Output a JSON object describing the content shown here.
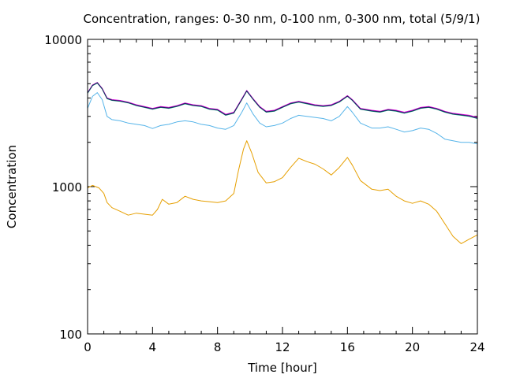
{
  "chart_data": {
    "type": "line",
    "title": "Concentration, ranges: 0-30 nm, 0-100 nm, 0-300 nm, total (5/9/1)",
    "xlabel": "Time [hour]",
    "ylabel": "Concentration",
    "xlim": [
      0,
      24
    ],
    "ylim": [
      100,
      10000
    ],
    "yscale": "log",
    "xticks": [
      0,
      4,
      8,
      12,
      16,
      20,
      24
    ],
    "xtick_labels": [
      "0",
      "4",
      "8",
      "12",
      "16",
      "20",
      "24"
    ],
    "yticks": [
      100,
      1000,
      10000
    ],
    "ytick_labels": [
      "100",
      "1000",
      "10000"
    ],
    "grid": false,
    "legend": "none",
    "series": [
      {
        "color": "#e69f00",
        "points": [
          [
            0,
            980
          ],
          [
            0.3,
            1020
          ],
          [
            0.7,
            980
          ],
          [
            1,
            900
          ],
          [
            1.2,
            780
          ],
          [
            1.5,
            720
          ],
          [
            2,
            680
          ],
          [
            2.5,
            640
          ],
          [
            3,
            660
          ],
          [
            3.5,
            650
          ],
          [
            4,
            640
          ],
          [
            4.3,
            700
          ],
          [
            4.6,
            820
          ],
          [
            5,
            760
          ],
          [
            5.5,
            780
          ],
          [
            6,
            860
          ],
          [
            6.5,
            820
          ],
          [
            7,
            800
          ],
          [
            7.5,
            790
          ],
          [
            8,
            780
          ],
          [
            8.5,
            800
          ],
          [
            9,
            900
          ],
          [
            9.3,
            1300
          ],
          [
            9.6,
            1800
          ],
          [
            9.8,
            2050
          ],
          [
            10.1,
            1700
          ],
          [
            10.5,
            1250
          ],
          [
            11,
            1060
          ],
          [
            11.5,
            1080
          ],
          [
            12,
            1150
          ],
          [
            12.5,
            1350
          ],
          [
            13,
            1560
          ],
          [
            13.5,
            1480
          ],
          [
            14,
            1420
          ],
          [
            14.5,
            1320
          ],
          [
            15,
            1200
          ],
          [
            15.5,
            1350
          ],
          [
            16,
            1580
          ],
          [
            16.3,
            1400
          ],
          [
            16.8,
            1100
          ],
          [
            17.5,
            960
          ],
          [
            18,
            940
          ],
          [
            18.5,
            960
          ],
          [
            19,
            860
          ],
          [
            19.5,
            800
          ],
          [
            20,
            770
          ],
          [
            20.5,
            800
          ],
          [
            21,
            760
          ],
          [
            21.5,
            680
          ],
          [
            22,
            560
          ],
          [
            22.5,
            460
          ],
          [
            23,
            410
          ],
          [
            23.5,
            440
          ],
          [
            24,
            470
          ]
        ]
      },
      {
        "color": "#56b4e9",
        "points": [
          [
            0,
            3400
          ],
          [
            0.3,
            4100
          ],
          [
            0.6,
            4350
          ],
          [
            0.9,
            3900
          ],
          [
            1.2,
            3000
          ],
          [
            1.5,
            2850
          ],
          [
            2,
            2800
          ],
          [
            2.5,
            2700
          ],
          [
            3,
            2650
          ],
          [
            3.5,
            2600
          ],
          [
            4,
            2480
          ],
          [
            4.5,
            2600
          ],
          [
            5,
            2650
          ],
          [
            5.5,
            2750
          ],
          [
            6,
            2800
          ],
          [
            6.5,
            2750
          ],
          [
            7,
            2650
          ],
          [
            7.5,
            2600
          ],
          [
            8,
            2500
          ],
          [
            8.5,
            2450
          ],
          [
            9,
            2600
          ],
          [
            9.5,
            3200
          ],
          [
            9.8,
            3700
          ],
          [
            10.2,
            3100
          ],
          [
            10.6,
            2700
          ],
          [
            11,
            2550
          ],
          [
            11.5,
            2600
          ],
          [
            12,
            2700
          ],
          [
            12.5,
            2900
          ],
          [
            13,
            3050
          ],
          [
            13.5,
            3000
          ],
          [
            14,
            2950
          ],
          [
            14.5,
            2900
          ],
          [
            15,
            2800
          ],
          [
            15.5,
            3000
          ],
          [
            16,
            3500
          ],
          [
            16.3,
            3200
          ],
          [
            16.8,
            2700
          ],
          [
            17.5,
            2500
          ],
          [
            18,
            2500
          ],
          [
            18.5,
            2550
          ],
          [
            19,
            2450
          ],
          [
            19.5,
            2350
          ],
          [
            20,
            2400
          ],
          [
            20.5,
            2500
          ],
          [
            21,
            2450
          ],
          [
            21.5,
            2300
          ],
          [
            22,
            2100
          ],
          [
            22.5,
            2050
          ],
          [
            23,
            2000
          ],
          [
            23.5,
            2000
          ],
          [
            24,
            1950
          ]
        ]
      },
      {
        "color": "#009e73",
        "points": [
          [
            0,
            4300
          ],
          [
            0.3,
            4850
          ],
          [
            0.6,
            5050
          ],
          [
            0.9,
            4600
          ],
          [
            1.2,
            3950
          ],
          [
            1.5,
            3850
          ],
          [
            2,
            3800
          ],
          [
            2.5,
            3700
          ],
          [
            3,
            3550
          ],
          [
            3.5,
            3450
          ],
          [
            4,
            3350
          ],
          [
            4.5,
            3450
          ],
          [
            5,
            3400
          ],
          [
            5.5,
            3500
          ],
          [
            6,
            3650
          ],
          [
            6.5,
            3550
          ],
          [
            7,
            3500
          ],
          [
            7.5,
            3350
          ],
          [
            8,
            3300
          ],
          [
            8.5,
            3050
          ],
          [
            9,
            3150
          ],
          [
            9.5,
            3900
          ],
          [
            9.8,
            4450
          ],
          [
            10.2,
            3900
          ],
          [
            10.6,
            3450
          ],
          [
            11,
            3200
          ],
          [
            11.5,
            3250
          ],
          [
            12,
            3450
          ],
          [
            12.5,
            3650
          ],
          [
            13,
            3750
          ],
          [
            13.5,
            3650
          ],
          [
            14,
            3550
          ],
          [
            14.5,
            3500
          ],
          [
            15,
            3550
          ],
          [
            15.5,
            3750
          ],
          [
            16,
            4100
          ],
          [
            16.3,
            3850
          ],
          [
            16.8,
            3350
          ],
          [
            17.5,
            3250
          ],
          [
            18,
            3200
          ],
          [
            18.5,
            3300
          ],
          [
            19,
            3250
          ],
          [
            19.5,
            3150
          ],
          [
            20,
            3250
          ],
          [
            20.5,
            3400
          ],
          [
            21,
            3450
          ],
          [
            21.5,
            3350
          ],
          [
            22,
            3200
          ],
          [
            22.5,
            3100
          ],
          [
            23,
            3050
          ],
          [
            23.5,
            3000
          ],
          [
            24,
            2900
          ]
        ]
      },
      {
        "color": "#e000e0",
        "points": [
          [
            0,
            4350
          ],
          [
            0.3,
            4900
          ],
          [
            0.6,
            5100
          ],
          [
            0.9,
            4650
          ],
          [
            1.2,
            4000
          ],
          [
            1.5,
            3900
          ],
          [
            2,
            3850
          ],
          [
            2.5,
            3750
          ],
          [
            3,
            3600
          ],
          [
            3.5,
            3500
          ],
          [
            4,
            3400
          ],
          [
            4.5,
            3500
          ],
          [
            5,
            3450
          ],
          [
            5.5,
            3550
          ],
          [
            6,
            3700
          ],
          [
            6.5,
            3600
          ],
          [
            7,
            3550
          ],
          [
            7.5,
            3400
          ],
          [
            8,
            3350
          ],
          [
            8.5,
            3100
          ],
          [
            9,
            3200
          ],
          [
            9.5,
            3950
          ],
          [
            9.8,
            4500
          ],
          [
            10.2,
            3950
          ],
          [
            10.6,
            3500
          ],
          [
            11,
            3250
          ],
          [
            11.5,
            3300
          ],
          [
            12,
            3500
          ],
          [
            12.5,
            3700
          ],
          [
            13,
            3800
          ],
          [
            13.5,
            3700
          ],
          [
            14,
            3600
          ],
          [
            14.5,
            3550
          ],
          [
            15,
            3600
          ],
          [
            15.5,
            3800
          ],
          [
            16,
            4150
          ],
          [
            16.3,
            3900
          ],
          [
            16.8,
            3400
          ],
          [
            17.5,
            3300
          ],
          [
            18,
            3250
          ],
          [
            18.5,
            3350
          ],
          [
            19,
            3300
          ],
          [
            19.5,
            3200
          ],
          [
            20,
            3300
          ],
          [
            20.5,
            3450
          ],
          [
            21,
            3500
          ],
          [
            21.5,
            3400
          ],
          [
            22,
            3250
          ],
          [
            22.5,
            3150
          ],
          [
            23,
            3100
          ],
          [
            23.5,
            3050
          ],
          [
            24,
            2950
          ]
        ]
      },
      {
        "color": "#202060",
        "points": [
          [
            0,
            4330
          ],
          [
            0.3,
            4870
          ],
          [
            0.6,
            5080
          ],
          [
            0.9,
            4620
          ],
          [
            1.2,
            3980
          ],
          [
            1.5,
            3870
          ],
          [
            2,
            3820
          ],
          [
            2.5,
            3720
          ],
          [
            3,
            3570
          ],
          [
            3.5,
            3470
          ],
          [
            4,
            3370
          ],
          [
            4.5,
            3470
          ],
          [
            5,
            3420
          ],
          [
            5.5,
            3520
          ],
          [
            6,
            3670
          ],
          [
            6.5,
            3570
          ],
          [
            7,
            3520
          ],
          [
            7.5,
            3370
          ],
          [
            8,
            3320
          ],
          [
            8.5,
            3070
          ],
          [
            9,
            3170
          ],
          [
            9.5,
            3920
          ],
          [
            9.8,
            4470
          ],
          [
            10.2,
            3920
          ],
          [
            10.6,
            3470
          ],
          [
            11,
            3220
          ],
          [
            11.5,
            3270
          ],
          [
            12,
            3470
          ],
          [
            12.5,
            3670
          ],
          [
            13,
            3770
          ],
          [
            13.5,
            3670
          ],
          [
            14,
            3570
          ],
          [
            14.5,
            3520
          ],
          [
            15,
            3570
          ],
          [
            15.5,
            3770
          ],
          [
            16,
            4120
          ],
          [
            16.3,
            3870
          ],
          [
            16.8,
            3370
          ],
          [
            17.5,
            3270
          ],
          [
            18,
            3220
          ],
          [
            18.5,
            3320
          ],
          [
            19,
            3270
          ],
          [
            19.5,
            3170
          ],
          [
            20,
            3270
          ],
          [
            20.5,
            3420
          ],
          [
            21,
            3470
          ],
          [
            21.5,
            3370
          ],
          [
            22,
            3220
          ],
          [
            22.5,
            3120
          ],
          [
            23,
            3070
          ],
          [
            23.5,
            3020
          ],
          [
            24,
            2920
          ]
        ]
      }
    ]
  }
}
